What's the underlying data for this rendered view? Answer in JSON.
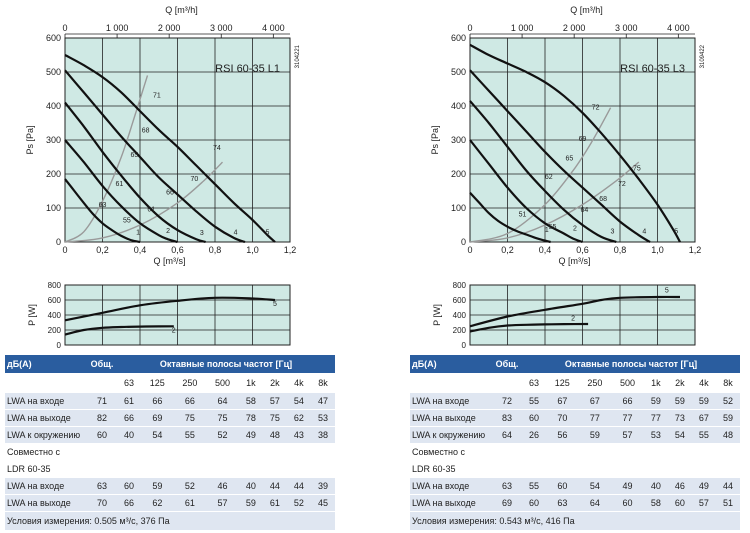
{
  "panels": [
    {
      "id": "left",
      "chart_data": {
        "type": "line",
        "title": "RSI 60-35 L1",
        "code": "3104221",
        "xlabel": "Q [m³/s]",
        "x2label": "Q [m³/h]",
        "ylabel": "Ps [Pa]",
        "xlim": [
          0,
          1.2
        ],
        "ylim": [
          0,
          600
        ],
        "xticks": [
          "0",
          "0,2",
          "0,4",
          "0,6",
          "0,8",
          "1,0",
          "1,2"
        ],
        "x2ticks": [
          "0",
          "1 000",
          "2 000",
          "3 000",
          "4 000"
        ],
        "yticks": [
          "0",
          "100",
          "200",
          "300",
          "400",
          "500",
          "600"
        ],
        "grid": true,
        "series": [
          {
            "name": "1",
            "x": [
              0,
              0.05,
              0.1,
              0.15,
              0.2,
              0.25,
              0.3,
              0.35,
              0.4
            ],
            "y": [
              185,
              150,
              115,
              82,
              55,
              35,
              18,
              6,
              0
            ]
          },
          {
            "name": "2",
            "x": [
              0,
              0.1,
              0.2,
              0.3,
              0.4,
              0.5,
              0.55,
              0.6
            ],
            "y": [
              300,
              235,
              165,
              105,
              55,
              20,
              8,
              0
            ]
          },
          {
            "name": "3",
            "x": [
              0,
              0.1,
              0.2,
              0.3,
              0.4,
              0.5,
              0.6,
              0.7,
              0.75
            ],
            "y": [
              410,
              340,
              265,
              195,
              130,
              75,
              35,
              8,
              0
            ]
          },
          {
            "name": "4",
            "x": [
              0,
              0.1,
              0.2,
              0.3,
              0.4,
              0.5,
              0.6,
              0.7,
              0.8,
              0.9,
              0.96
            ],
            "y": [
              505,
              440,
              375,
              310,
              250,
              190,
              140,
              90,
              45,
              12,
              0
            ]
          },
          {
            "name": "5",
            "x": [
              0,
              0.1,
              0.2,
              0.3,
              0.4,
              0.5,
              0.6,
              0.7,
              0.8,
              0.9,
              1.0,
              1.08,
              1.12
            ],
            "y": [
              550,
              520,
              485,
              440,
              385,
              330,
              280,
              225,
              170,
              115,
              65,
              20,
              0
            ]
          }
        ],
        "system_curves": [
          {
            "x": [
              0,
              0.1,
              0.2,
              0.3,
              0.38,
              0.44
            ],
            "y": [
              0,
              30,
              120,
              250,
              385,
              490
            ]
          },
          {
            "x": [
              0,
              0.2,
              0.4,
              0.6,
              0.75,
              0.84
            ],
            "y": [
              0,
              12,
              50,
              115,
              185,
              235
            ]
          }
        ],
        "annotations": [
          {
            "text": "71",
            "x": 0.49,
            "y": 425
          },
          {
            "text": "68",
            "x": 0.43,
            "y": 322
          },
          {
            "text": "65",
            "x": 0.37,
            "y": 250
          },
          {
            "text": "61",
            "x": 0.29,
            "y": 165
          },
          {
            "text": "63",
            "x": 0.2,
            "y": 103
          },
          {
            "text": "55",
            "x": 0.33,
            "y": 58
          },
          {
            "text": "74",
            "x": 0.81,
            "y": 270
          },
          {
            "text": "70",
            "x": 0.69,
            "y": 180
          },
          {
            "text": "66",
            "x": 0.56,
            "y": 140
          },
          {
            "text": "61",
            "x": 0.46,
            "y": 90
          },
          {
            "text": "1",
            "x": 0.39,
            "y": 22
          },
          {
            "text": "2",
            "x": 0.55,
            "y": 27
          },
          {
            "text": "3",
            "x": 0.73,
            "y": 20
          },
          {
            "text": "4",
            "x": 0.91,
            "y": 22
          },
          {
            "text": "5",
            "x": 1.08,
            "y": 22
          }
        ],
        "power": {
          "ylabel": "P [W]",
          "ylim": [
            0,
            800
          ],
          "yticks": [
            "0",
            "200",
            "400",
            "600",
            "800"
          ],
          "series": [
            {
              "name": "5",
              "x": [
                0,
                0.2,
                0.4,
                0.6,
                0.8,
                1.0,
                1.12
              ],
              "y": [
                330,
                430,
                530,
                590,
                630,
                620,
                600
              ]
            },
            {
              "name": "2",
              "x": [
                0,
                0.1,
                0.2,
                0.3,
                0.4,
                0.5,
                0.58
              ],
              "y": [
                140,
                200,
                230,
                240,
                245,
                248,
                250
              ]
            }
          ],
          "labels": [
            {
              "text": "5",
              "x": 1.12,
              "y": 520
            },
            {
              "text": "2",
              "x": 0.58,
              "y": 170
            }
          ]
        }
      },
      "table": {
        "header": {
          "label": "дБ(A)",
          "total": "Общ.",
          "bands_title": "Октавные полосы частот [Гц]"
        },
        "bands": [
          "63",
          "125",
          "250",
          "500",
          "1k",
          "2k",
          "4k",
          "8k"
        ],
        "rows": [
          {
            "label": "LWA на входе",
            "total": "71",
            "values": [
              "61",
              "66",
              "66",
              "64",
              "58",
              "57",
              "54",
              "47"
            ]
          },
          {
            "label": "LWA на выходе",
            "total": "82",
            "values": [
              "66",
              "69",
              "75",
              "75",
              "78",
              "75",
              "62",
              "53"
            ]
          },
          {
            "label": "LWA к окружению",
            "total": "60",
            "values": [
              "40",
              "54",
              "55",
              "52",
              "49",
              "48",
              "43",
              "38"
            ]
          }
        ],
        "together_label_1": "Совместно с",
        "together_label_2": "LDR 60-35",
        "rows2": [
          {
            "label": "LWA на входе",
            "total": "63",
            "values": [
              "60",
              "59",
              "52",
              "46",
              "40",
              "44",
              "44",
              "39"
            ]
          },
          {
            "label": "LWA на выходе",
            "total": "70",
            "values": [
              "66",
              "62",
              "61",
              "57",
              "59",
              "61",
              "52",
              "45"
            ]
          }
        ],
        "conditions": "Условия измерения: 0.505 м³/с, 376 Па"
      }
    },
    {
      "id": "right",
      "chart_data": {
        "type": "line",
        "title": "RSI 60-35 L3",
        "code": "3109422",
        "xlabel": "Q [m³/s]",
        "x2label": "Q [m³/h]",
        "ylabel": "Ps [Pa]",
        "xlim": [
          0,
          1.2
        ],
        "ylim": [
          0,
          600
        ],
        "xticks": [
          "0",
          "0,2",
          "0,4",
          "0,6",
          "0,8",
          "1,0",
          "1,2"
        ],
        "x2ticks": [
          "0",
          "1 000",
          "2 000",
          "3 000",
          "4 000"
        ],
        "yticks": [
          "0",
          "100",
          "200",
          "300",
          "400",
          "500",
          "600"
        ],
        "grid": true,
        "series": [
          {
            "name": "1",
            "x": [
              0,
              0.05,
              0.1,
              0.15,
              0.2,
              0.25,
              0.3,
              0.35,
              0.4,
              0.43
            ],
            "y": [
              145,
              115,
              85,
              62,
              45,
              32,
              22,
              12,
              4,
              0
            ]
          },
          {
            "name": "2",
            "x": [
              0,
              0.1,
              0.2,
              0.3,
              0.4,
              0.5,
              0.55,
              0.6
            ],
            "y": [
              300,
              230,
              160,
              100,
              55,
              25,
              10,
              0
            ]
          },
          {
            "name": "3",
            "x": [
              0,
              0.1,
              0.2,
              0.3,
              0.4,
              0.5,
              0.6,
              0.7,
              0.78
            ],
            "y": [
              415,
              350,
              280,
              210,
              150,
              95,
              50,
              15,
              0
            ]
          },
          {
            "name": "4",
            "x": [
              0,
              0.1,
              0.2,
              0.3,
              0.4,
              0.5,
              0.6,
              0.7,
              0.8,
              0.9,
              0.96
            ],
            "y": [
              505,
              445,
              385,
              325,
              265,
              210,
              160,
              110,
              60,
              20,
              0
            ]
          },
          {
            "name": "5",
            "x": [
              0,
              0.1,
              0.2,
              0.3,
              0.4,
              0.5,
              0.6,
              0.7,
              0.8,
              0.9,
              1.0,
              1.08,
              1.12
            ],
            "y": [
              580,
              550,
              525,
              500,
              470,
              430,
              380,
              320,
              255,
              185,
              110,
              40,
              0
            ]
          }
        ],
        "system_curves": [
          {
            "x": [
              0,
              0.2,
              0.4,
              0.55,
              0.65,
              0.75
            ],
            "y": [
              0,
              25,
              110,
              210,
              295,
              395
            ]
          },
          {
            "x": [
              0,
              0.2,
              0.4,
              0.6,
              0.78,
              0.9
            ],
            "y": [
              0,
              12,
              50,
              110,
              180,
              235
            ]
          }
        ],
        "annotations": [
          {
            "text": "72",
            "x": 0.67,
            "y": 390
          },
          {
            "text": "69",
            "x": 0.6,
            "y": 297
          },
          {
            "text": "65",
            "x": 0.53,
            "y": 240
          },
          {
            "text": "62",
            "x": 0.42,
            "y": 185
          },
          {
            "text": "51",
            "x": 0.28,
            "y": 75
          },
          {
            "text": "55",
            "x": 0.44,
            "y": 38
          },
          {
            "text": "75",
            "x": 0.89,
            "y": 210
          },
          {
            "text": "72",
            "x": 0.81,
            "y": 165
          },
          {
            "text": "68",
            "x": 0.71,
            "y": 120
          },
          {
            "text": "64",
            "x": 0.61,
            "y": 88
          },
          {
            "text": "1",
            "x": 0.41,
            "y": 30
          },
          {
            "text": "2",
            "x": 0.56,
            "y": 34
          },
          {
            "text": "3",
            "x": 0.76,
            "y": 25
          },
          {
            "text": "4",
            "x": 0.93,
            "y": 25
          },
          {
            "text": "5",
            "x": 1.1,
            "y": 25
          }
        ],
        "power": {
          "ylabel": "P [W]",
          "ylim": [
            0,
            800
          ],
          "yticks": [
            "0",
            "200",
            "400",
            "600",
            "800"
          ],
          "series": [
            {
              "name": "5",
              "x": [
                0,
                0.2,
                0.4,
                0.6,
                0.7,
                0.8,
                1.0,
                1.12
              ],
              "y": [
                250,
                380,
                470,
                550,
                600,
                630,
                640,
                640
              ]
            },
            {
              "name": "2",
              "x": [
                0,
                0.1,
                0.2,
                0.3,
                0.4,
                0.5,
                0.63
              ],
              "y": [
                180,
                230,
                260,
                270,
                275,
                278,
                280
              ]
            }
          ],
          "labels": [
            {
              "text": "5",
              "x": 1.05,
              "y": 700
            },
            {
              "text": "2",
              "x": 0.55,
              "y": 330
            }
          ]
        }
      },
      "table": {
        "header": {
          "label": "дБ(A)",
          "total": "Общ.",
          "bands_title": "Октавные полосы частот [Гц]"
        },
        "bands": [
          "63",
          "125",
          "250",
          "500",
          "1k",
          "2k",
          "4k",
          "8k"
        ],
        "rows": [
          {
            "label": "LWA на входе",
            "total": "72",
            "values": [
              "55",
              "67",
              "67",
              "66",
              "59",
              "59",
              "59",
              "52"
            ]
          },
          {
            "label": "LWA на выходе",
            "total": "83",
            "values": [
              "60",
              "70",
              "77",
              "77",
              "77",
              "73",
              "67",
              "59"
            ]
          },
          {
            "label": "LWA к окружению",
            "total": "64",
            "values": [
              "26",
              "56",
              "59",
              "57",
              "53",
              "54",
              "55",
              "48"
            ]
          }
        ],
        "together_label_1": "Совместно с",
        "together_label_2": "LDR 60-35",
        "rows2": [
          {
            "label": "LWA на входе",
            "total": "63",
            "values": [
              "55",
              "60",
              "54",
              "49",
              "40",
              "46",
              "49",
              "44"
            ]
          },
          {
            "label": "LWA на выходе",
            "total": "69",
            "values": [
              "60",
              "63",
              "64",
              "60",
              "58",
              "60",
              "57",
              "51"
            ]
          }
        ],
        "conditions": "Условия измерения: 0.543 м³/с, 416 Па"
      }
    }
  ]
}
